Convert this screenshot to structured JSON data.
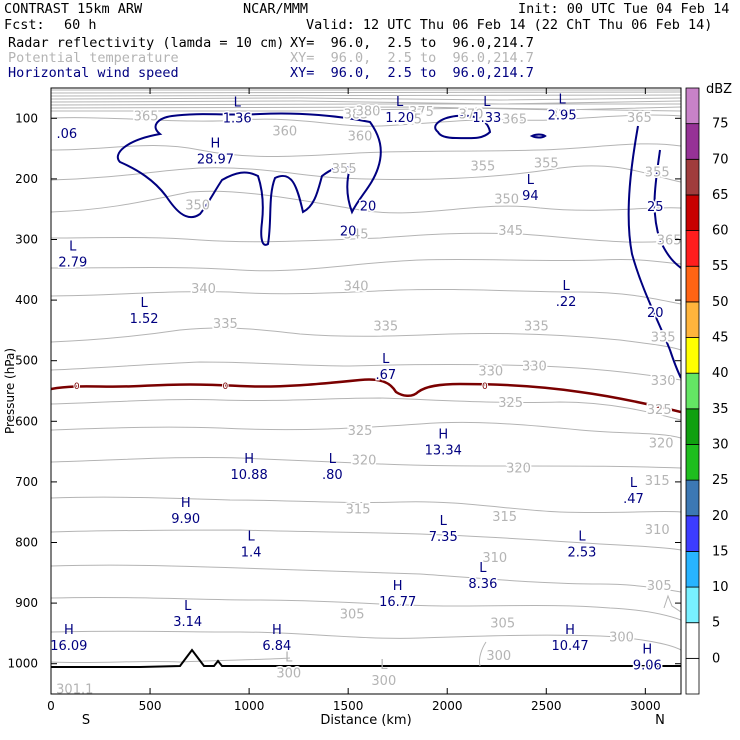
{
  "header": {
    "model": "CONTRAST 15km ARW",
    "org": "NCAR/MMM",
    "init": "Init: 00 UTC Tue 04 Feb 14",
    "fcst_label": "Fcst:",
    "fcst_value": "60 h",
    "valid": "Valid: 12 UTC Thu 06 Feb 14 (22 ChT Thu 06 Feb 14)"
  },
  "fields": [
    {
      "name": "Radar reflectivity (lamda = 10 cm)",
      "xy": "XY=  96.0,  2.5 to  96.0,214.7",
      "color": "#000000"
    },
    {
      "name": "Potential temperature",
      "xy": "XY=  96.0,  2.5 to  96.0,214.7",
      "color": "#b4b4b4"
    },
    {
      "name": "Horizontal wind speed",
      "xy": "XY=  96.0,  2.5 to  96.0,214.7",
      "color": "#000080"
    }
  ],
  "chart_data": {
    "type": "contour_cross_section",
    "xlabel": "Distance (km)",
    "ylabel": "Pressure (hPa)",
    "xlim": [
      0,
      3180
    ],
    "ylim": [
      1050,
      50
    ],
    "x_ticks": [
      0,
      500,
      1000,
      1500,
      2000,
      2500,
      3000
    ],
    "y_ticks": [
      100,
      200,
      300,
      400,
      500,
      600,
      700,
      800,
      900,
      1000
    ],
    "x_end_labels": {
      "left": "S",
      "right": "N"
    },
    "colorbar": {
      "unit": "dBZ",
      "levels": [
        0,
        5,
        10,
        15,
        20,
        25,
        30,
        35,
        40,
        45,
        50,
        55,
        60,
        65,
        70,
        75
      ],
      "colors": [
        "#ffffff",
        "#78f0ff",
        "#28b4ff",
        "#3c3cff",
        "#3c78b4",
        "#1ebe1e",
        "#10a010",
        "#64e664",
        "#ffff00",
        "#ffb43c",
        "#ff6414",
        "#ff1e1e",
        "#c80000",
        "#a03c3c",
        "#963296",
        "#c882c8"
      ]
    },
    "theta_labels": [
      {
        "v": "385",
        "x": 1540,
        "p": 92
      },
      {
        "v": "380",
        "x": 1600,
        "p": 87
      },
      {
        "v": "375",
        "x": 1870,
        "p": 88
      },
      {
        "v": "370",
        "x": 2120,
        "p": 92
      },
      {
        "v": "370",
        "x": 2580,
        "p": 94
      },
      {
        "v": "365",
        "x": 480,
        "p": 95
      },
      {
        "v": "365",
        "x": 1810,
        "p": 100
      },
      {
        "v": "365",
        "x": 2340,
        "p": 100
      },
      {
        "v": "365",
        "x": 2970,
        "p": 98
      },
      {
        "v": "365",
        "x": 3120,
        "p": 300
      },
      {
        "v": "360",
        "x": 1180,
        "p": 120
      },
      {
        "v": "360",
        "x": 1560,
        "p": 128
      },
      {
        "v": "355",
        "x": 2500,
        "p": 173
      },
      {
        "v": "355",
        "x": 1480,
        "p": 182
      },
      {
        "v": "355",
        "x": 2180,
        "p": 178
      },
      {
        "v": "355",
        "x": 3060,
        "p": 188
      },
      {
        "v": "350",
        "x": 740,
        "p": 242
      },
      {
        "v": "350",
        "x": 2300,
        "p": 232
      },
      {
        "v": "345",
        "x": 1540,
        "p": 290
      },
      {
        "v": "345",
        "x": 2320,
        "p": 284
      },
      {
        "v": "340",
        "x": 770,
        "p": 380
      },
      {
        "v": "340",
        "x": 1540,
        "p": 376
      },
      {
        "v": "335",
        "x": 880,
        "p": 438
      },
      {
        "v": "335",
        "x": 1690,
        "p": 442
      },
      {
        "v": "335",
        "x": 2450,
        "p": 442
      },
      {
        "v": "335",
        "x": 3090,
        "p": 460
      },
      {
        "v": "330",
        "x": 2220,
        "p": 516
      },
      {
        "v": "330",
        "x": 2440,
        "p": 508
      },
      {
        "v": "330",
        "x": 3090,
        "p": 532
      },
      {
        "v": "325",
        "x": 3070,
        "p": 580
      },
      {
        "v": "325",
        "x": 1560,
        "p": 614
      },
      {
        "v": "325",
        "x": 2320,
        "p": 568
      },
      {
        "v": "320",
        "x": 1580,
        "p": 663
      },
      {
        "v": "320",
        "x": 2360,
        "p": 676
      },
      {
        "v": "320",
        "x": 3080,
        "p": 635
      },
      {
        "v": "315",
        "x": 1550,
        "p": 744
      },
      {
        "v": "315",
        "x": 2290,
        "p": 756
      },
      {
        "v": "315",
        "x": 3060,
        "p": 697
      },
      {
        "v": "310",
        "x": 2240,
        "p": 824
      },
      {
        "v": "310",
        "x": 3060,
        "p": 778
      },
      {
        "v": "305",
        "x": 1520,
        "p": 917
      },
      {
        "v": "305",
        "x": 2280,
        "p": 932
      },
      {
        "v": "305",
        "x": 3070,
        "p": 870
      },
      {
        "v": "300",
        "x": 1200,
        "p": 1016
      },
      {
        "v": "300",
        "x": 1680,
        "p": 1028
      },
      {
        "v": "300",
        "x": 2260,
        "p": 986
      },
      {
        "v": "300",
        "x": 2880,
        "p": 955
      },
      {
        "v": "301.1",
        "x": 120,
        "p": 1041
      }
    ],
    "extrema": [
      {
        "t": "L",
        "v": "1.36",
        "x": 940,
        "p": 87
      },
      {
        "t": "L",
        "v": "1.20",
        "x": 1760,
        "p": 86
      },
      {
        "t": "L",
        "v": "1.33",
        "x": 2200,
        "p": 86
      },
      {
        "t": "L",
        "v": "2.95",
        "x": 2580,
        "p": 82
      },
      {
        "t": "",
        "v": ".06",
        "x": 80,
        "p": 113
      },
      {
        "t": "H",
        "v": "28.97",
        "x": 830,
        "p": 155
      },
      {
        "t": "L",
        "v": "94",
        "x": 2420,
        "p": 215
      },
      {
        "t": "L",
        "v": "2.79",
        "x": 110,
        "p": 325
      },
      {
        "t": "L",
        "v": "1.52",
        "x": 470,
        "p": 418
      },
      {
        "t": "L",
        "v": ".22",
        "x": 2600,
        "p": 390
      },
      {
        "t": "L",
        "v": ".67",
        "x": 1690,
        "p": 510
      },
      {
        "t": "H",
        "v": "13.34",
        "x": 1980,
        "p": 635
      },
      {
        "t": "H",
        "v": "10.88",
        "x": 1000,
        "p": 675
      },
      {
        "t": "L",
        "v": ".80",
        "x": 1420,
        "p": 675
      },
      {
        "t": "H",
        "v": "9.90",
        "x": 680,
        "p": 748
      },
      {
        "t": "L",
        "v": ".47",
        "x": 2940,
        "p": 715
      },
      {
        "t": "L",
        "v": "7.35",
        "x": 1980,
        "p": 778
      },
      {
        "t": "L",
        "v": "1.4",
        "x": 1010,
        "p": 803
      },
      {
        "t": "L",
        "v": "2.53",
        "x": 2680,
        "p": 803
      },
      {
        "t": "L",
        "v": "8.36",
        "x": 2180,
        "p": 855
      },
      {
        "t": "H",
        "v": "16.77",
        "x": 1750,
        "p": 885
      },
      {
        "t": "L",
        "v": "3.14",
        "x": 690,
        "p": 918
      },
      {
        "t": "H",
        "v": "16.09",
        "x": 90,
        "p": 958
      },
      {
        "t": "H",
        "v": "6.84",
        "x": 1140,
        "p": 958
      },
      {
        "t": "H",
        "v": "10.47",
        "x": 2620,
        "p": 958
      },
      {
        "t": "H",
        "v": "9.06",
        "x": 3010,
        "p": 990
      },
      {
        "t": "L",
        "v": "300",
        "x": 1200,
        "p": 1003,
        "gray": true
      },
      {
        "t": "L",
        "v": "300",
        "x": 1680,
        "p": 1015,
        "gray": true
      }
    ],
    "wind_contour_labels": [
      {
        "v": "20",
        "x": 1600,
        "p": 244
      },
      {
        "v": "20",
        "x": 1500,
        "p": 285
      },
      {
        "v": "25",
        "x": 3050,
        "p": 245
      },
      {
        "v": "20",
        "x": 3050,
        "p": 420
      }
    ],
    "zero_line_labels": [
      {
        "v": "0",
        "x": 130,
        "p": 542
      },
      {
        "v": "0",
        "x": 880,
        "p": 542
      },
      {
        "v": "0",
        "x": 2190,
        "p": 542
      }
    ]
  }
}
